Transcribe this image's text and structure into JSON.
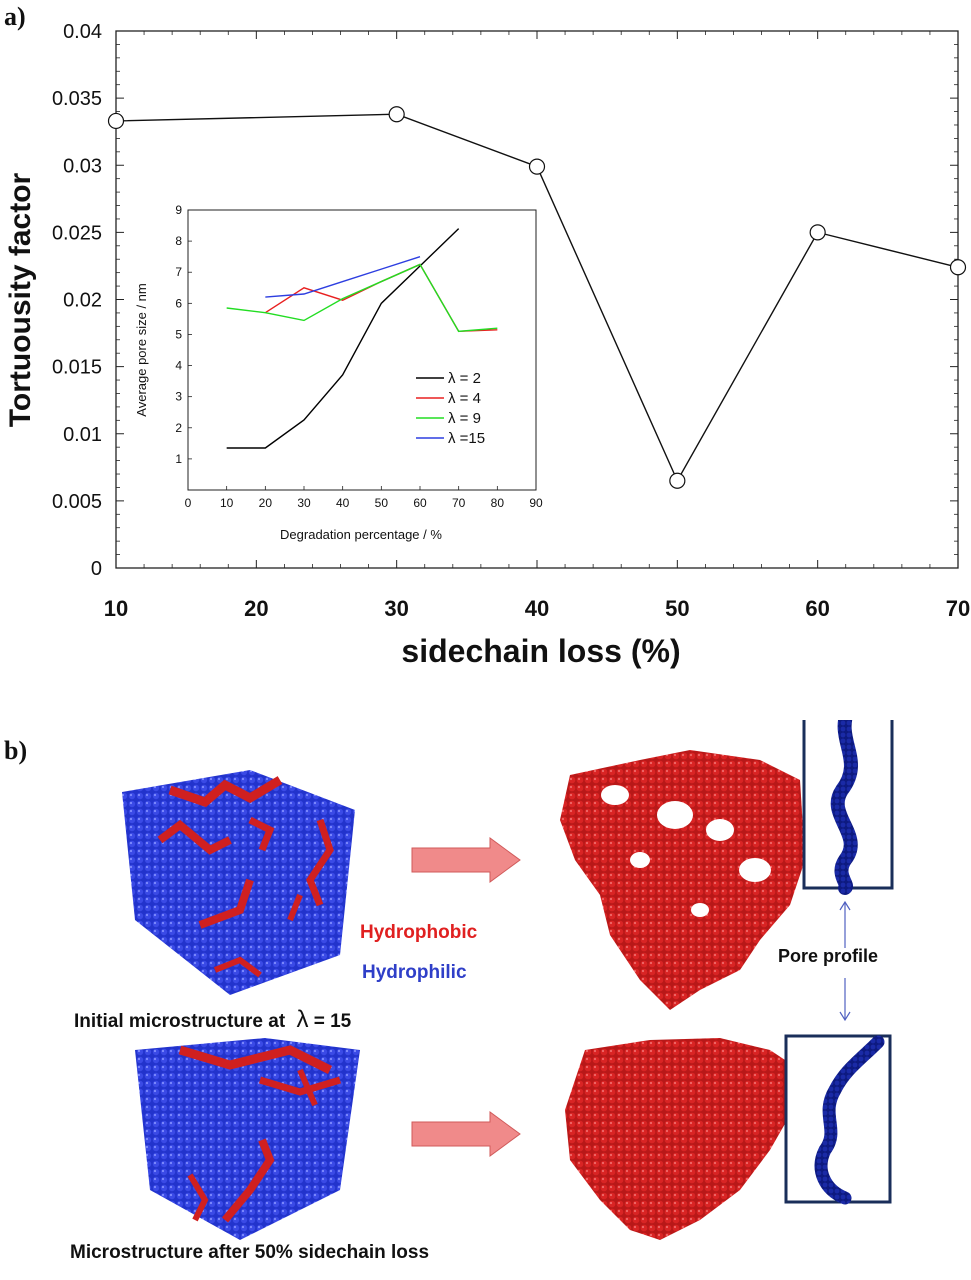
{
  "panel_a_label": "a)",
  "panel_b_label": "b)",
  "chart_data": [
    {
      "type": "line",
      "title": "",
      "xlabel": "sidechain loss (%)",
      "ylabel": "Tortuousity factor",
      "x": [
        10,
        30,
        40,
        50,
        60,
        70
      ],
      "series": [
        {
          "values": [
            0.0333,
            0.0338,
            0.0299,
            0.0065,
            0.025,
            0.0224
          ]
        }
      ],
      "xlim": [
        10,
        70
      ],
      "ylim": [
        0,
        0.04
      ],
      "xticks": [
        "10",
        "20",
        "30",
        "40",
        "50",
        "60",
        "70"
      ],
      "yticks": [
        "0",
        "0.005",
        "0.01",
        "0.015",
        "0.02",
        "0.025",
        "0.03",
        "0.035",
        "0.04"
      ],
      "marker": "open-circle",
      "grid": false
    },
    {
      "type": "line",
      "title": "",
      "xlabel": "Degradation percentage / %",
      "ylabel": "Average pore size  /  nm",
      "xlim": [
        0,
        90
      ],
      "ylim": [
        0,
        9
      ],
      "xticks": [
        "0",
        "10",
        "20",
        "30",
        "40",
        "50",
        "60",
        "70",
        "80",
        "90"
      ],
      "yticks": [
        "1",
        "2",
        "3",
        "4",
        "5",
        "6",
        "7",
        "8",
        "9"
      ],
      "legend_position": "bottom-right",
      "series": [
        {
          "name": "λ = 2",
          "color": "#000000",
          "x": [
            10,
            20,
            30,
            40,
            50,
            60,
            70
          ],
          "values": [
            1.35,
            1.35,
            2.25,
            3.7,
            6.0,
            7.2,
            8.4
          ]
        },
        {
          "name": "λ = 4",
          "color": "#e82020",
          "x": [
            20,
            30,
            40,
            50,
            60,
            70,
            80
          ],
          "values": [
            5.7,
            6.5,
            6.1,
            6.7,
            7.25,
            5.1,
            5.15
          ]
        },
        {
          "name": "λ = 9",
          "color": "#22dd22",
          "x": [
            10,
            20,
            30,
            40,
            50,
            60,
            70,
            80
          ],
          "values": [
            5.85,
            5.7,
            5.45,
            6.15,
            6.7,
            7.25,
            5.1,
            5.2
          ]
        },
        {
          "name": "λ =15",
          "color": "#2d3ee0",
          "x": [
            20,
            30,
            40,
            50,
            60
          ],
          "values": [
            6.2,
            6.3,
            6.7,
            7.1,
            7.5
          ]
        }
      ]
    }
  ],
  "panel_b": {
    "hydrophobic": "Hydrophobic",
    "hydrophilic": "Hydrophilic",
    "pore_profile": "Pore profile",
    "caption_top": "Initial microstructure at",
    "caption_top_symbol": "λ",
    "caption_top_value": "= 15",
    "caption_bottom": "Microstructure after 50% sidechain loss",
    "colors": {
      "hydrophobic": "#e02020",
      "hydrophilic": "#2233cc",
      "arrow": "#f08080",
      "frame": "#1a2e5a"
    }
  }
}
